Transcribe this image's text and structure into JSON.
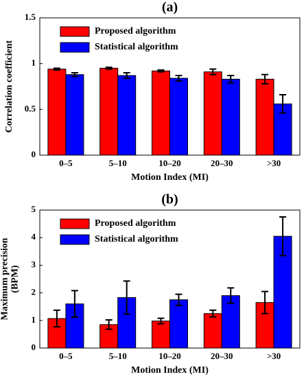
{
  "chart_data": [
    {
      "type": "bar",
      "title": "(a)",
      "ylabel": [
        "Correlation coefficient"
      ],
      "xlabel": "Motion Index (MI)",
      "categories": [
        "0–5",
        "5–10",
        "10–20",
        "20–30",
        ">30"
      ],
      "series": [
        {
          "name": "Proposed algorithm",
          "color": "#ff0000",
          "values": [
            0.94,
            0.95,
            0.92,
            0.91,
            0.83
          ],
          "errors": [
            0.01,
            0.01,
            0.01,
            0.03,
            0.05
          ]
        },
        {
          "name": "Statistical algorithm",
          "color": "#0000ff",
          "values": [
            0.88,
            0.87,
            0.84,
            0.83,
            0.56
          ],
          "errors": [
            0.02,
            0.03,
            0.03,
            0.04,
            0.1
          ]
        }
      ],
      "ylim": [
        0,
        1.5
      ],
      "yticks": [
        0,
        0.5,
        1,
        1.5
      ],
      "legend": "upper-left",
      "grid": false
    },
    {
      "type": "bar",
      "title": "(b)",
      "ylabel": [
        "Maximum precision",
        "(BPM)"
      ],
      "xlabel": "Motion Index (MI)",
      "categories": [
        "0–5",
        "5–10",
        "10–20",
        "20–30",
        ">30"
      ],
      "series": [
        {
          "name": "Proposed algorithm",
          "color": "#ff0000",
          "values": [
            1.07,
            0.85,
            0.98,
            1.25,
            1.65
          ],
          "errors": [
            0.3,
            0.17,
            0.1,
            0.12,
            0.4
          ]
        },
        {
          "name": "Statistical algorithm",
          "color": "#0000ff",
          "values": [
            1.6,
            1.83,
            1.75,
            1.9,
            4.05
          ],
          "errors": [
            0.48,
            0.6,
            0.2,
            0.28,
            0.7
          ]
        }
      ],
      "ylim": [
        0,
        5
      ],
      "yticks": [
        0,
        1,
        2,
        3,
        4,
        5
      ],
      "legend": "upper-left",
      "grid": false
    }
  ]
}
